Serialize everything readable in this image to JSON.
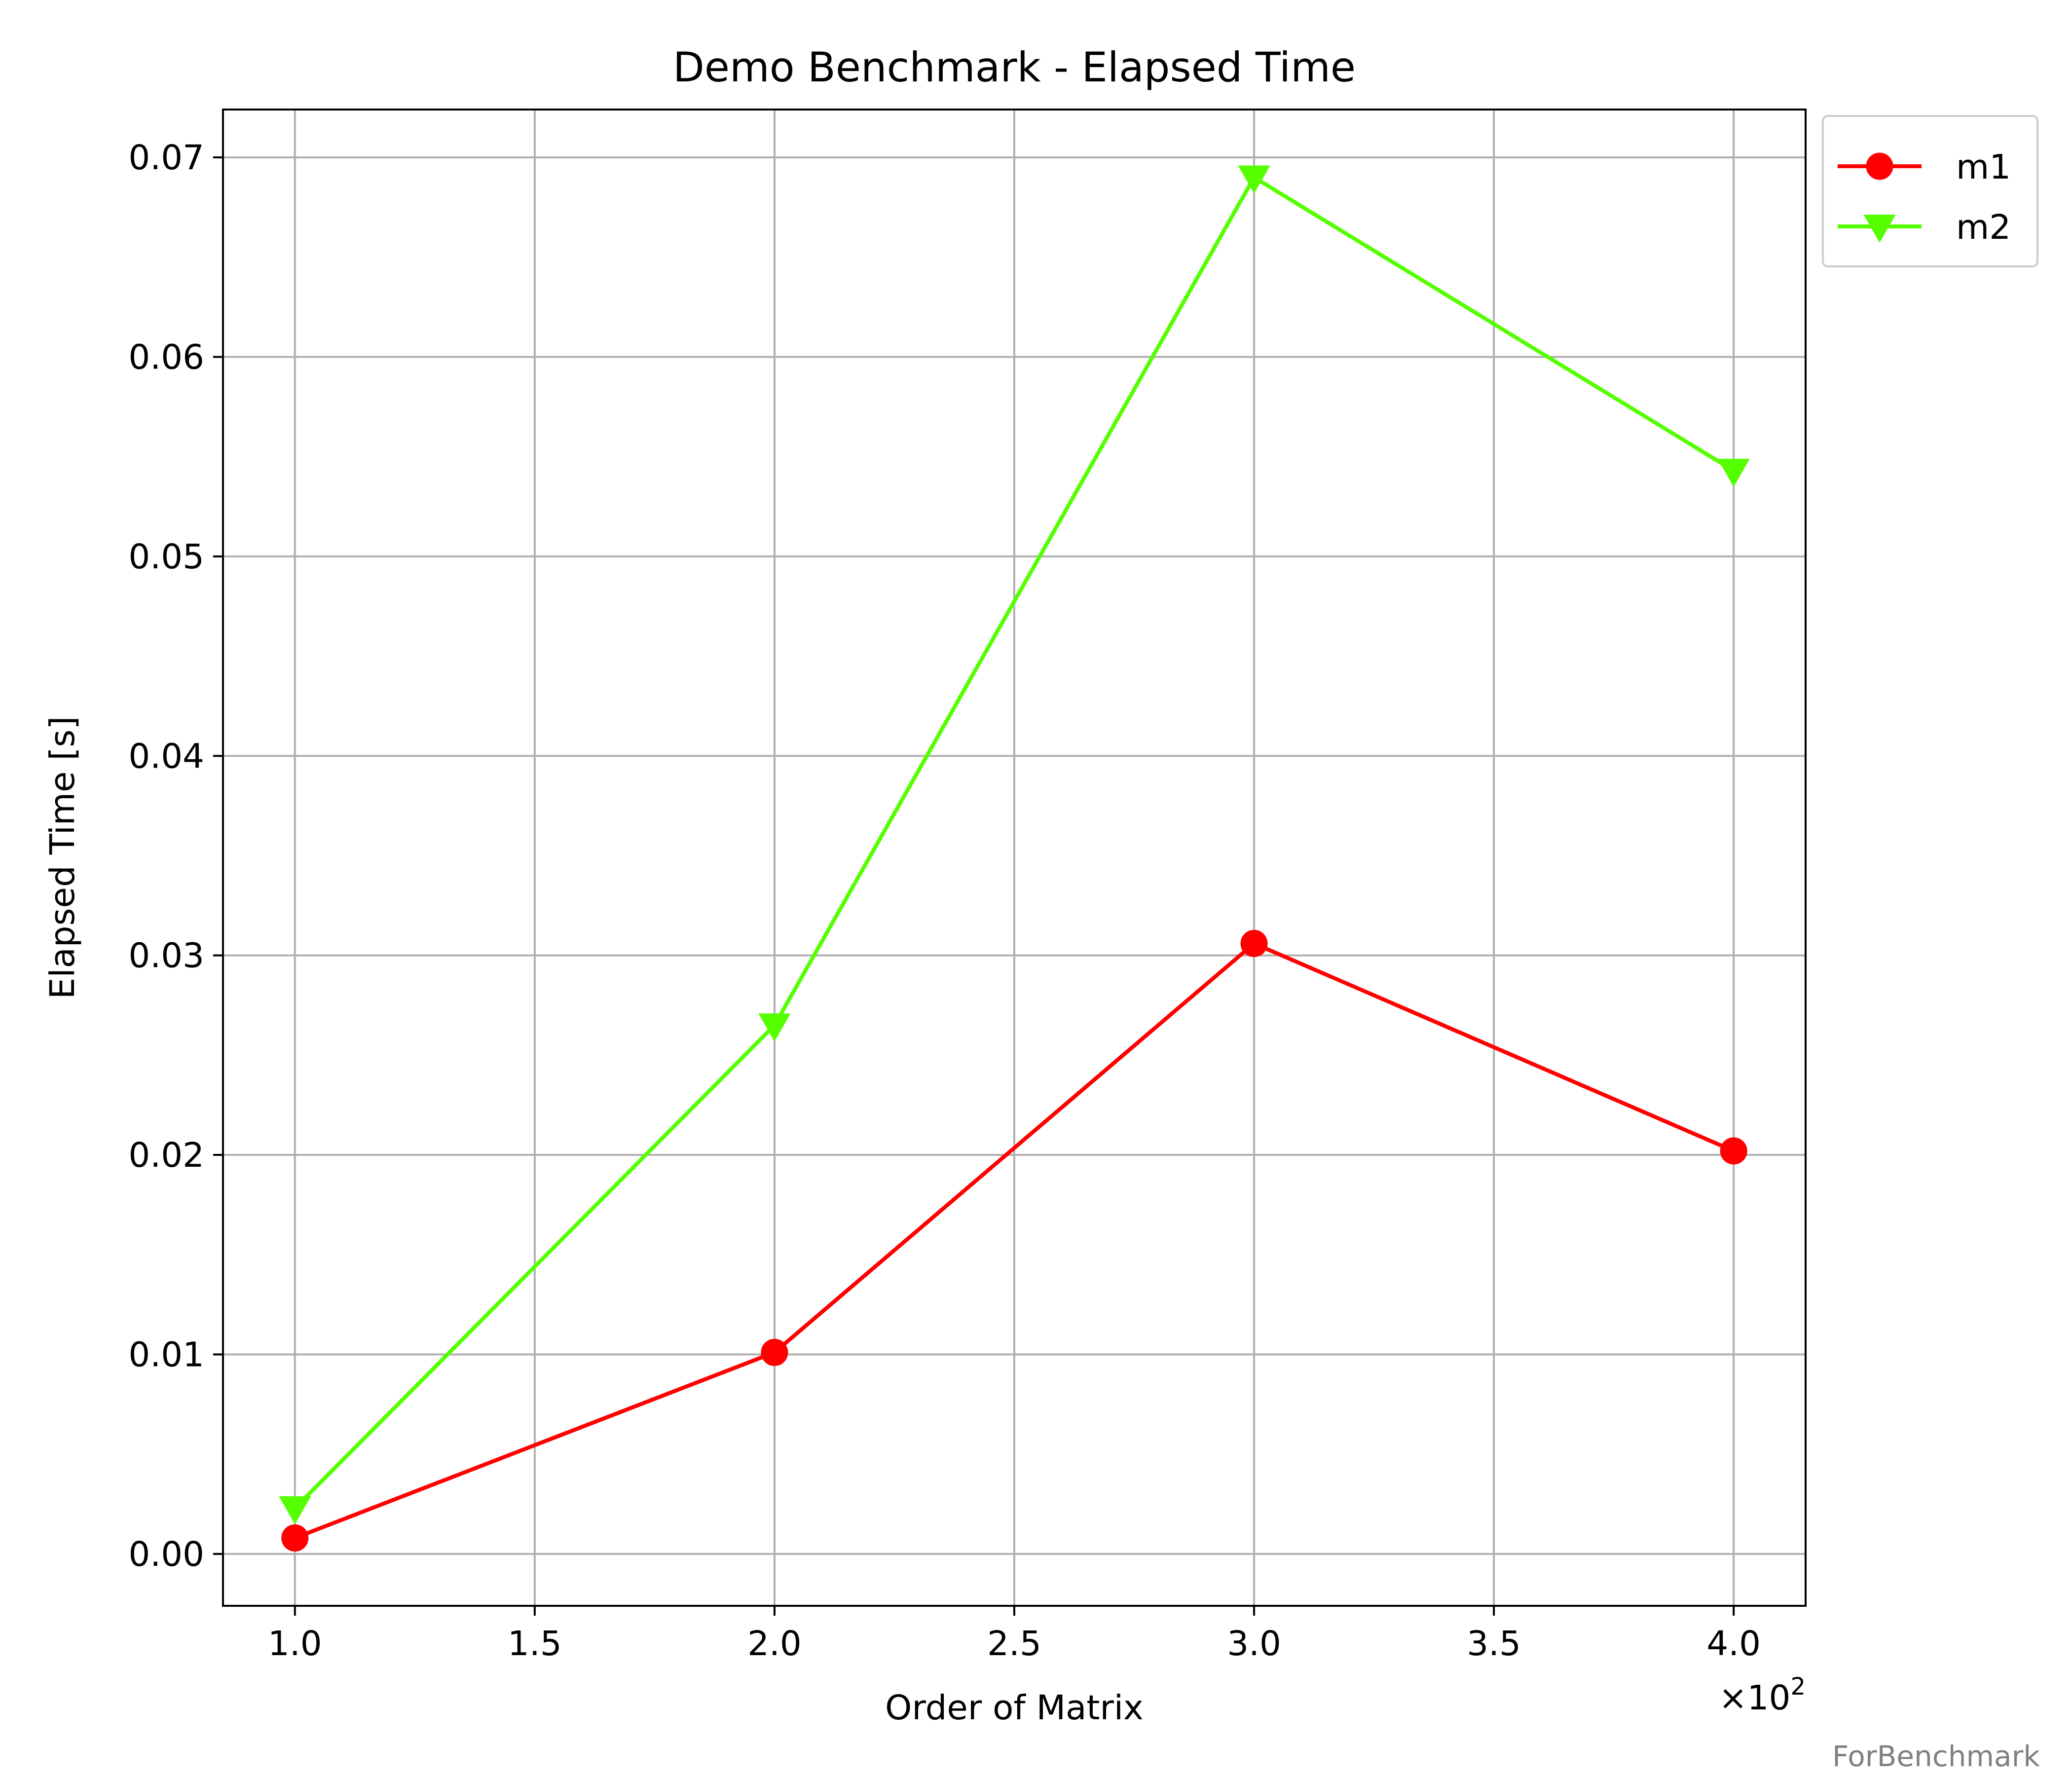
{
  "chart_data": {
    "type": "line",
    "title": "Demo Benchmark - Elapsed Time",
    "xlabel": "Order of Matrix",
    "ylabel": "Elapsed Time [s]",
    "x_offset_label": "×10",
    "x_offset_exponent": "2",
    "x": [
      100,
      200,
      300,
      400
    ],
    "x_ticks": [
      1.0,
      1.5,
      2.0,
      2.5,
      3.0,
      3.5,
      4.0
    ],
    "x_tick_labels": [
      "1.0",
      "1.5",
      "2.0",
      "2.5",
      "3.0",
      "3.5",
      "4.0"
    ],
    "y_ticks": [
      0.0,
      0.01,
      0.02,
      0.03,
      0.04,
      0.05,
      0.06,
      0.07
    ],
    "y_tick_labels": [
      "0.00",
      "0.01",
      "0.02",
      "0.03",
      "0.04",
      "0.05",
      "0.06",
      "0.07"
    ],
    "xlim": [
      85,
      415
    ],
    "ylim": [
      -0.0026,
      0.0724
    ],
    "grid": true,
    "legend_position": "outside-top-right",
    "series": [
      {
        "name": "m1",
        "color": "#ff0000",
        "marker": "circle",
        "values": [
          0.0008,
          0.0101,
          0.0306,
          0.0202
        ]
      },
      {
        "name": "m2",
        "color": "#55ff00",
        "marker": "triangle-down",
        "values": [
          0.0023,
          0.0265,
          0.069,
          0.0543
        ]
      }
    ]
  },
  "footer_text": "ForBenchmark"
}
